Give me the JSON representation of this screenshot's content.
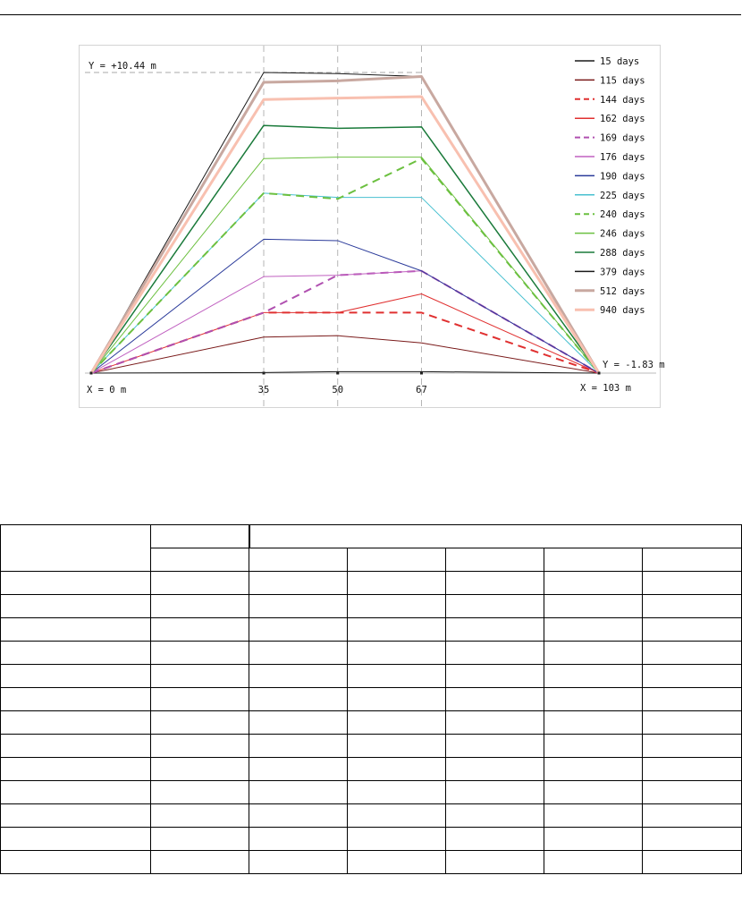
{
  "chart_data": {
    "type": "line",
    "title": "",
    "xlabel": "",
    "ylabel": "",
    "annotations": {
      "top_left": "Y = +10.44 m",
      "right": "Y = -1.83 m",
      "x_start": "X = 0 m",
      "x_end": "X = 103 m"
    },
    "x_ticks": [
      "35",
      "50",
      "67"
    ],
    "x": [
      0,
      35,
      50,
      67,
      103
    ],
    "ylim": [
      0,
      10.44
    ],
    "xlim": [
      0,
      103
    ],
    "grid": "vertical dashed at x ticks",
    "legend_position": "right",
    "series": [
      {
        "name": "15 days",
        "color": "#1a1a1a",
        "dash": false,
        "width": 1,
        "values": [
          0,
          0.02,
          0.05,
          0.05,
          0
        ]
      },
      {
        "name": "115 days",
        "color": "#7a1a1a",
        "dash": false,
        "width": 1,
        "values": [
          0,
          1.25,
          1.3,
          1.05,
          0
        ]
      },
      {
        "name": "144 days",
        "color": "#e03030",
        "dash": true,
        "width": 2,
        "values": [
          0,
          2.1,
          2.1,
          2.1,
          0
        ]
      },
      {
        "name": "162 days",
        "color": "#e03030",
        "dash": false,
        "width": 1,
        "values": [
          0,
          2.1,
          2.1,
          2.75,
          0
        ]
      },
      {
        "name": "169 days",
        "color": "#b050b0",
        "dash": true,
        "width": 2,
        "values": [
          0,
          2.1,
          3.4,
          3.55,
          0
        ]
      },
      {
        "name": "176 days",
        "color": "#c060c0",
        "dash": false,
        "width": 1,
        "values": [
          0,
          3.35,
          3.4,
          3.55,
          0
        ]
      },
      {
        "name": "190 days",
        "color": "#2a3a9a",
        "dash": false,
        "width": 1,
        "values": [
          0,
          4.65,
          4.6,
          3.55,
          0
        ]
      },
      {
        "name": "225 days",
        "color": "#48c0d0",
        "dash": false,
        "width": 1,
        "values": [
          0,
          6.25,
          6.1,
          6.1,
          0
        ]
      },
      {
        "name": "240 days",
        "color": "#6cc040",
        "dash": true,
        "width": 2,
        "values": [
          0,
          6.25,
          6.05,
          7.45,
          0
        ]
      },
      {
        "name": "246 days",
        "color": "#6cc040",
        "dash": false,
        "width": 1,
        "values": [
          0,
          7.45,
          7.5,
          7.5,
          0
        ]
      },
      {
        "name": "288 days",
        "color": "#1a7a3a",
        "dash": false,
        "width": 1.5,
        "values": [
          0,
          8.6,
          8.5,
          8.55,
          0
        ]
      },
      {
        "name": "379 days",
        "color": "#1a1a1a",
        "dash": false,
        "width": 1,
        "values": [
          0,
          10.44,
          10.4,
          10.3,
          0
        ]
      },
      {
        "name": "512 days",
        "color": "#c8a8a0",
        "dash": false,
        "width": 3,
        "values": [
          0,
          10.1,
          10.15,
          10.3,
          0
        ]
      },
      {
        "name": "940 days",
        "color": "#f8c0b0",
        "dash": false,
        "width": 3,
        "values": [
          0,
          9.5,
          9.55,
          9.6,
          0
        ]
      }
    ]
  },
  "table": {
    "rows": 15,
    "cols": 7
  }
}
